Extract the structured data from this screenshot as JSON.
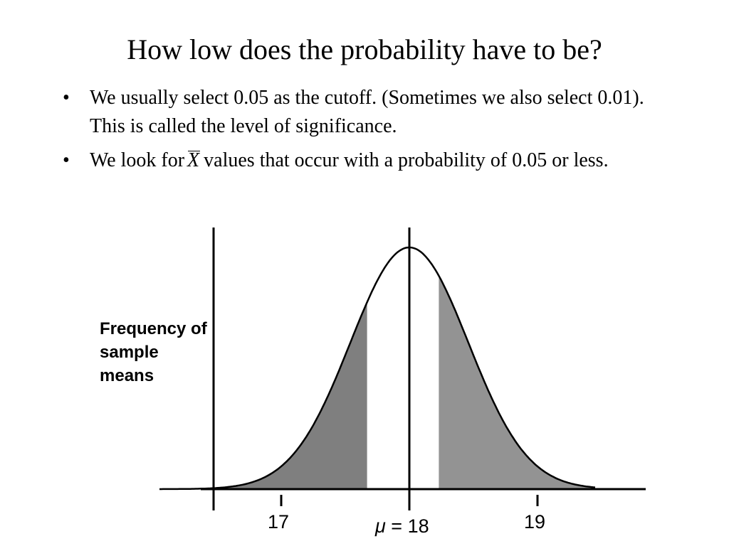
{
  "slide": {
    "title": "How low does the probability have to be?",
    "bullets": [
      {
        "marker": "•",
        "text": "We usually select 0.05 as the cutoff. (Sometimes we also select 0.01). This is called the level of significance."
      },
      {
        "marker": "•",
        "text_before": "We look for",
        "symbol": "X",
        "text_after": "values that occur with a probability of 0.05 or less."
      }
    ]
  },
  "chart_data": {
    "type": "area",
    "distribution": "normal",
    "ylabel": "Frequency of sample means",
    "xlim": [
      16.0,
      20.1
    ],
    "x_ticks": [
      {
        "value": 17,
        "label": "17"
      },
      {
        "value": 18,
        "label": "μ = 18"
      },
      {
        "value": 19,
        "label": "19"
      }
    ],
    "mean": 18,
    "mean_symbol": "μ",
    "mean_label_rest": " = 18",
    "curve_x_range": [
      16.05,
      19.45
    ],
    "shaded_left_tail_end": 17.67,
    "shaded_right_tail_start": 18.23,
    "colors": {
      "left_tail": "#7f7f7f",
      "right_tail": "#939393",
      "center": "#ffffff",
      "curve": "#000000"
    }
  }
}
